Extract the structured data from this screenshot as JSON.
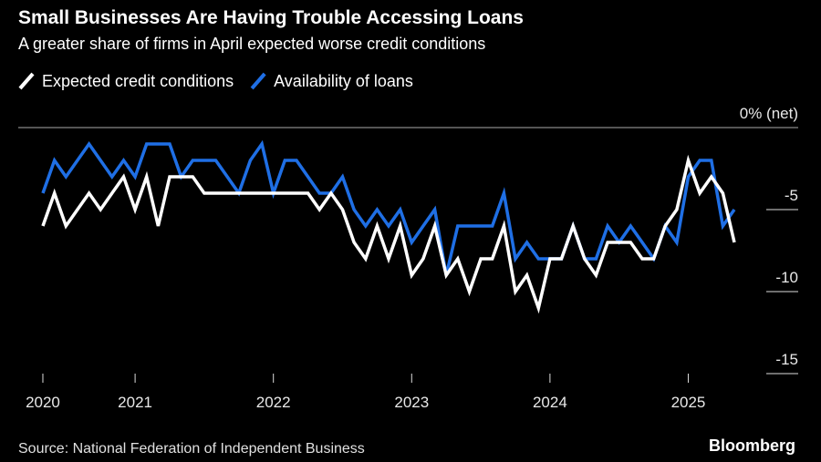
{
  "chart_data": {
    "type": "line",
    "title": "Small Businesses Are Having Trouble Accessing Loans",
    "subtitle": "A greater share of firms in April expected worse credit conditions",
    "source": "Source: National Federation of Independent Business",
    "brand": "Bloomberg",
    "x": [
      2020.333,
      2020.417,
      2020.5,
      2020.583,
      2020.667,
      2020.75,
      2020.833,
      2020.917,
      2021.0,
      2021.083,
      2021.167,
      2021.25,
      2021.333,
      2021.417,
      2021.5,
      2021.583,
      2021.667,
      2021.75,
      2021.833,
      2021.917,
      2022.0,
      2022.083,
      2022.167,
      2022.25,
      2022.333,
      2022.417,
      2022.5,
      2022.583,
      2022.667,
      2022.75,
      2022.833,
      2022.917,
      2023.0,
      2023.083,
      2023.167,
      2023.25,
      2023.333,
      2023.417,
      2023.5,
      2023.583,
      2023.667,
      2023.75,
      2023.833,
      2023.917,
      2024.0,
      2024.083,
      2024.167,
      2024.25,
      2024.333,
      2024.417,
      2024.5,
      2024.583,
      2024.667,
      2024.75,
      2024.833,
      2024.917,
      2025.0,
      2025.083,
      2025.167,
      2025.25,
      2025.333
    ],
    "series": [
      {
        "name": "Expected credit conditions",
        "color": "#ffffff",
        "values": [
          -6,
          -4,
          -6,
          -5,
          -4,
          -5,
          -4,
          -3,
          -5,
          -3,
          -6,
          -3,
          -3,
          -3,
          -4,
          -4,
          -4,
          -4,
          -4,
          -4,
          -4,
          -4,
          -4,
          -4,
          -5,
          -4,
          -5,
          -7,
          -8,
          -6,
          -8,
          -6,
          -9,
          -8,
          -6,
          -9,
          -8,
          -10,
          -8,
          -8,
          -6,
          -10,
          -9,
          -11,
          -8,
          -8,
          -6,
          -8,
          -9,
          -7,
          -7,
          -7,
          -8,
          -8,
          -6,
          -5,
          -2,
          -4,
          -3,
          -4,
          -7
        ]
      },
      {
        "name": "Availability of loans",
        "color": "#1f6fe5",
        "values": [
          -4,
          -2,
          -3,
          -2,
          -1,
          -2,
          -3,
          -2,
          -3,
          -1,
          -1,
          -1,
          -3,
          -2,
          -2,
          -2,
          -3,
          -4,
          -2,
          -1,
          -4,
          -2,
          -2,
          -3,
          -4,
          -4,
          -3,
          -5,
          -6,
          -5,
          -6,
          -5,
          -7,
          -6,
          -5,
          -9,
          -6,
          -6,
          -6,
          -6,
          -4,
          -8,
          -7,
          -8,
          -8,
          -8,
          -6,
          -8,
          -8,
          -6,
          -7,
          -6,
          -7,
          -8,
          -6,
          -7,
          -3,
          -2,
          -2,
          -6,
          -5
        ]
      }
    ],
    "xlim": [
      2020.155,
      2025.795
    ],
    "xticks": [
      {
        "value": 2020.333,
        "label": "2020"
      },
      2021,
      2022,
      2023,
      2024,
      2025
    ],
    "ylim": [
      -15,
      0
    ],
    "yticks": [
      {
        "value": 0,
        "label": "0% (net)"
      },
      -5,
      -10,
      -15
    ]
  }
}
